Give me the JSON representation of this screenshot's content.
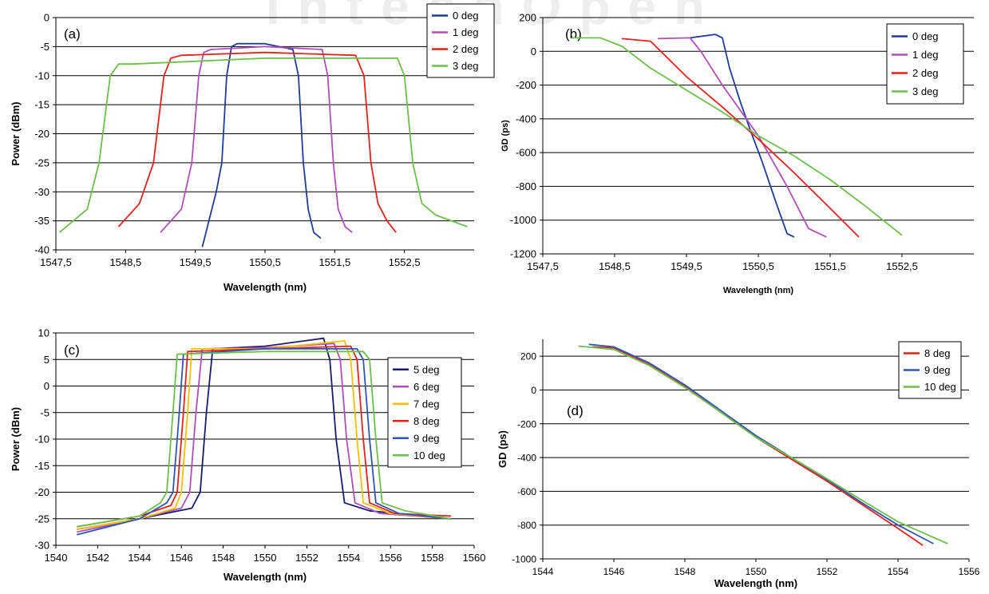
{
  "watermark": "IntechOpen",
  "colors": {
    "blue": "#1f3c9a",
    "magenta": "#b04fb8",
    "red": "#e3221c",
    "green": "#6cc04a",
    "yellow": "#f5c000",
    "darknavy": "#1a1a6e",
    "blue2": "#2f56b3",
    "grid": "#000000"
  },
  "chart_data": [
    {
      "panel": "(a)",
      "type": "line",
      "xlabel": "Wavelength (nm)",
      "ylabel": "Power (dBm)",
      "xlim": [
        1547.5,
        1553.5
      ],
      "ylim": [
        -40,
        0
      ],
      "xticks": [
        1547.5,
        1548.5,
        1549.5,
        1550.5,
        1551.5,
        1552.5
      ],
      "xtick_labels": [
        "1547,5",
        "1548,5",
        "1549,5",
        "1550,5",
        "1551,5",
        "1552,5"
      ],
      "yticks": [
        -40,
        -35,
        -30,
        -25,
        -20,
        -15,
        -10,
        -5,
        0
      ],
      "ytick_labels": [
        "-40",
        "-35",
        "-30",
        "-25",
        "-20",
        "-15",
        "-10",
        "-5",
        "0"
      ],
      "grid": "horizontal",
      "legend_position": "top-right",
      "series": [
        {
          "name": "0 deg",
          "color": "blue",
          "x": [
            1549.6,
            1549.8,
            1549.88,
            1549.95,
            1550.02,
            1550.1,
            1550.5,
            1550.9,
            1550.98,
            1551.05,
            1551.12,
            1551.2,
            1551.3
          ],
          "y": [
            -39.5,
            -30,
            -25,
            -10,
            -5,
            -4.5,
            -4.5,
            -5.5,
            -10,
            -25,
            -33,
            -37,
            -38
          ]
        },
        {
          "name": "1 deg",
          "color": "magenta",
          "x": [
            1549.0,
            1549.3,
            1549.45,
            1549.55,
            1549.62,
            1549.72,
            1550.5,
            1551.32,
            1551.4,
            1551.48,
            1551.55,
            1551.65,
            1551.75
          ],
          "y": [
            -37,
            -33,
            -25,
            -10,
            -6,
            -5.5,
            -5,
            -5.5,
            -10,
            -25,
            -33,
            -36,
            -37
          ]
        },
        {
          "name": "2 deg",
          "color": "red",
          "x": [
            1548.4,
            1548.7,
            1548.9,
            1549.05,
            1549.15,
            1549.3,
            1550.5,
            1551.8,
            1551.92,
            1552.02,
            1552.12,
            1552.25,
            1552.38
          ],
          "y": [
            -36,
            -32,
            -25,
            -10,
            -7,
            -6.5,
            -6,
            -6.5,
            -10,
            -25,
            -32,
            -35,
            -37
          ]
        },
        {
          "name": "3 deg",
          "color": "green",
          "x": [
            1547.55,
            1547.95,
            1548.12,
            1548.28,
            1548.4,
            1548.6,
            1550.5,
            1552.4,
            1552.5,
            1552.62,
            1552.75,
            1552.95,
            1553.4
          ],
          "y": [
            -37,
            -33,
            -25,
            -10,
            -8,
            -8,
            -7,
            -7,
            -10,
            -25,
            -32,
            -34,
            -36
          ]
        }
      ]
    },
    {
      "panel": "(b)",
      "type": "line",
      "xlabel": "Wavelength (nm)",
      "ylabel": "GD (ps)",
      "xlim": [
        1547.5,
        1553.5
      ],
      "ylim": [
        -1200,
        200
      ],
      "xticks": [
        1547.5,
        1548.5,
        1549.5,
        1550.5,
        1551.5,
        1552.5
      ],
      "xtick_labels": [
        "1547,5",
        "1548,5",
        "1549,5",
        "1550,5",
        "1551,5",
        "1552,5"
      ],
      "yticks": [
        -1200,
        -1000,
        -800,
        -600,
        -400,
        -200,
        0,
        200
      ],
      "ytick_labels": [
        "-1200",
        "-1000",
        "-800",
        "-600",
        "-400",
        "-200",
        "0",
        "200"
      ],
      "grid": "horizontal",
      "legend_position": "top-right",
      "series": [
        {
          "name": "0 deg",
          "color": "blue",
          "x": [
            1549.55,
            1549.9,
            1550.0,
            1550.1,
            1550.25,
            1550.4,
            1550.55,
            1550.75,
            1550.9,
            1551.0
          ],
          "y": [
            80,
            100,
            80,
            -100,
            -300,
            -480,
            -650,
            -900,
            -1080,
            -1100
          ]
        },
        {
          "name": "1 deg",
          "color": "magenta",
          "x": [
            1549.1,
            1549.55,
            1549.7,
            1550.0,
            1550.5,
            1550.9,
            1551.2,
            1551.45
          ],
          "y": [
            75,
            80,
            0,
            -200,
            -500,
            -800,
            -1050,
            -1100
          ]
        },
        {
          "name": "2 deg",
          "color": "red",
          "x": [
            1548.6,
            1549.0,
            1549.5,
            1550.0,
            1550.5,
            1551.0,
            1551.5,
            1551.9
          ],
          "y": [
            75,
            60,
            -150,
            -330,
            -520,
            -720,
            -930,
            -1100
          ]
        },
        {
          "name": "3 deg",
          "color": "green",
          "x": [
            1547.9,
            1548.3,
            1548.6,
            1549.0,
            1549.5,
            1550.0,
            1550.5,
            1551.0,
            1551.5,
            1552.0,
            1552.5
          ],
          "y": [
            80,
            80,
            30,
            -100,
            -230,
            -360,
            -500,
            -620,
            -760,
            -920,
            -1090
          ]
        }
      ]
    },
    {
      "panel": "(c)",
      "type": "line",
      "xlabel": "Wavelength (nm)",
      "ylabel": "Power (dBm)",
      "xlim": [
        1540,
        1560
      ],
      "ylim": [
        -30,
        10
      ],
      "xticks": [
        1540,
        1542,
        1544,
        1546,
        1548,
        1550,
        1552,
        1554,
        1556,
        1558,
        1560
      ],
      "xtick_labels": [
        "1540",
        "1542",
        "1544",
        "1546",
        "1548",
        "1550",
        "1552",
        "1554",
        "1556",
        "1558",
        "1560"
      ],
      "yticks": [
        -30,
        -25,
        -20,
        -15,
        -10,
        -5,
        0,
        5,
        10
      ],
      "ytick_labels": [
        "-30",
        "-25",
        "-20",
        "-15",
        "-10",
        "-5",
        "0",
        "5",
        "10"
      ],
      "grid": "horizontal",
      "legend_position": "top-right",
      "series": [
        {
          "name": "5 deg",
          "color": "darknavy",
          "x": [
            1541.0,
            1544.0,
            1546.5,
            1546.9,
            1547.2,
            1547.5,
            1550.0,
            1552.8,
            1553.1,
            1553.4,
            1553.8,
            1555.0,
            1558.9
          ],
          "y": [
            -27,
            -25,
            -23,
            -20,
            -5,
            7,
            7.5,
            9,
            5,
            -10,
            -22,
            -23.5,
            -25
          ]
        },
        {
          "name": "6 deg",
          "color": "magenta",
          "x": [
            1541.0,
            1544.0,
            1546.0,
            1546.4,
            1546.7,
            1547.0,
            1550.0,
            1553.3,
            1553.6,
            1553.9,
            1554.3,
            1555.5,
            1558.9
          ],
          "y": [
            -27.5,
            -25,
            -23,
            -20,
            -5,
            7,
            7.2,
            8,
            5,
            -10,
            -22,
            -24,
            -25
          ]
        },
        {
          "name": "7 deg",
          "color": "yellow",
          "x": [
            1541.0,
            1544.0,
            1545.7,
            1546.0,
            1546.3,
            1546.5,
            1550.0,
            1553.8,
            1554.1,
            1554.4,
            1554.7,
            1556.0,
            1558.9
          ],
          "y": [
            -27,
            -25,
            -23,
            -20,
            -5,
            7,
            7,
            8.5,
            5,
            -10,
            -22,
            -24,
            -25
          ]
        },
        {
          "name": "8 deg",
          "color": "red",
          "x": [
            1541.0,
            1544.0,
            1545.5,
            1545.8,
            1546.1,
            1546.3,
            1550.0,
            1554.1,
            1554.4,
            1554.7,
            1555.0,
            1556.2,
            1558.9
          ],
          "y": [
            -26.5,
            -24.5,
            -22.5,
            -20,
            -5,
            6.5,
            7,
            7.5,
            5,
            -10,
            -22,
            -24,
            -24.5
          ]
        },
        {
          "name": "9 deg",
          "color": "blue2",
          "x": [
            1541.0,
            1544.0,
            1545.3,
            1545.6,
            1545.9,
            1546.1,
            1550.0,
            1554.4,
            1554.7,
            1555.0,
            1555.3,
            1556.4,
            1558.9
          ],
          "y": [
            -28,
            -25,
            -22,
            -20,
            -5,
            6,
            7,
            7,
            5,
            -10,
            -22,
            -24,
            -25
          ]
        },
        {
          "name": "10 deg",
          "color": "green",
          "x": [
            1541.0,
            1544.0,
            1545.0,
            1545.3,
            1545.6,
            1545.8,
            1550.0,
            1554.7,
            1555.0,
            1555.3,
            1555.6,
            1556.7,
            1558.9
          ],
          "y": [
            -26.5,
            -24.5,
            -22,
            -20,
            -5,
            6,
            6.5,
            6.5,
            5,
            -10,
            -22,
            -23.5,
            -25
          ]
        }
      ]
    },
    {
      "panel": "(d)",
      "type": "line",
      "xlabel": "Wavelength (nm)",
      "ylabel": "GD (ps)",
      "xlim": [
        1544,
        1556
      ],
      "ylim": [
        -1000,
        300
      ],
      "xticks": [
        1544,
        1546,
        1548,
        1550,
        1552,
        1554,
        1556
      ],
      "xtick_labels": [
        "1544",
        "1546",
        "1548",
        "1550",
        "1552",
        "1554",
        "1556"
      ],
      "yticks": [
        -1000,
        -800,
        -600,
        -400,
        -200,
        0,
        200
      ],
      "ytick_labels": [
        "-1000",
        "-800",
        "-600",
        "-400",
        "-200",
        "0",
        "200"
      ],
      "grid": "horizontal",
      "legend_position": "top-right",
      "series": [
        {
          "name": "8 deg",
          "color": "red",
          "x": [
            1545.4,
            1546.0,
            1547.0,
            1548.0,
            1549.0,
            1550.0,
            1551.0,
            1552.0,
            1553.0,
            1554.0,
            1554.7
          ],
          "y": [
            255,
            250,
            150,
            20,
            -130,
            -280,
            -410,
            -540,
            -680,
            -820,
            -920
          ]
        },
        {
          "name": "9 deg",
          "color": "blue2",
          "x": [
            1545.3,
            1546.0,
            1547.0,
            1548.0,
            1549.0,
            1550.0,
            1551.0,
            1552.0,
            1553.0,
            1554.0,
            1555.0
          ],
          "y": [
            270,
            255,
            160,
            30,
            -120,
            -270,
            -400,
            -530,
            -670,
            -800,
            -910
          ]
        },
        {
          "name": "10 deg",
          "color": "green",
          "x": [
            1545.0,
            1546.0,
            1547.0,
            1548.0,
            1549.0,
            1550.0,
            1551.0,
            1552.0,
            1553.0,
            1554.0,
            1555.4
          ],
          "y": [
            260,
            240,
            145,
            15,
            -130,
            -280,
            -400,
            -525,
            -655,
            -780,
            -910
          ]
        }
      ]
    }
  ]
}
